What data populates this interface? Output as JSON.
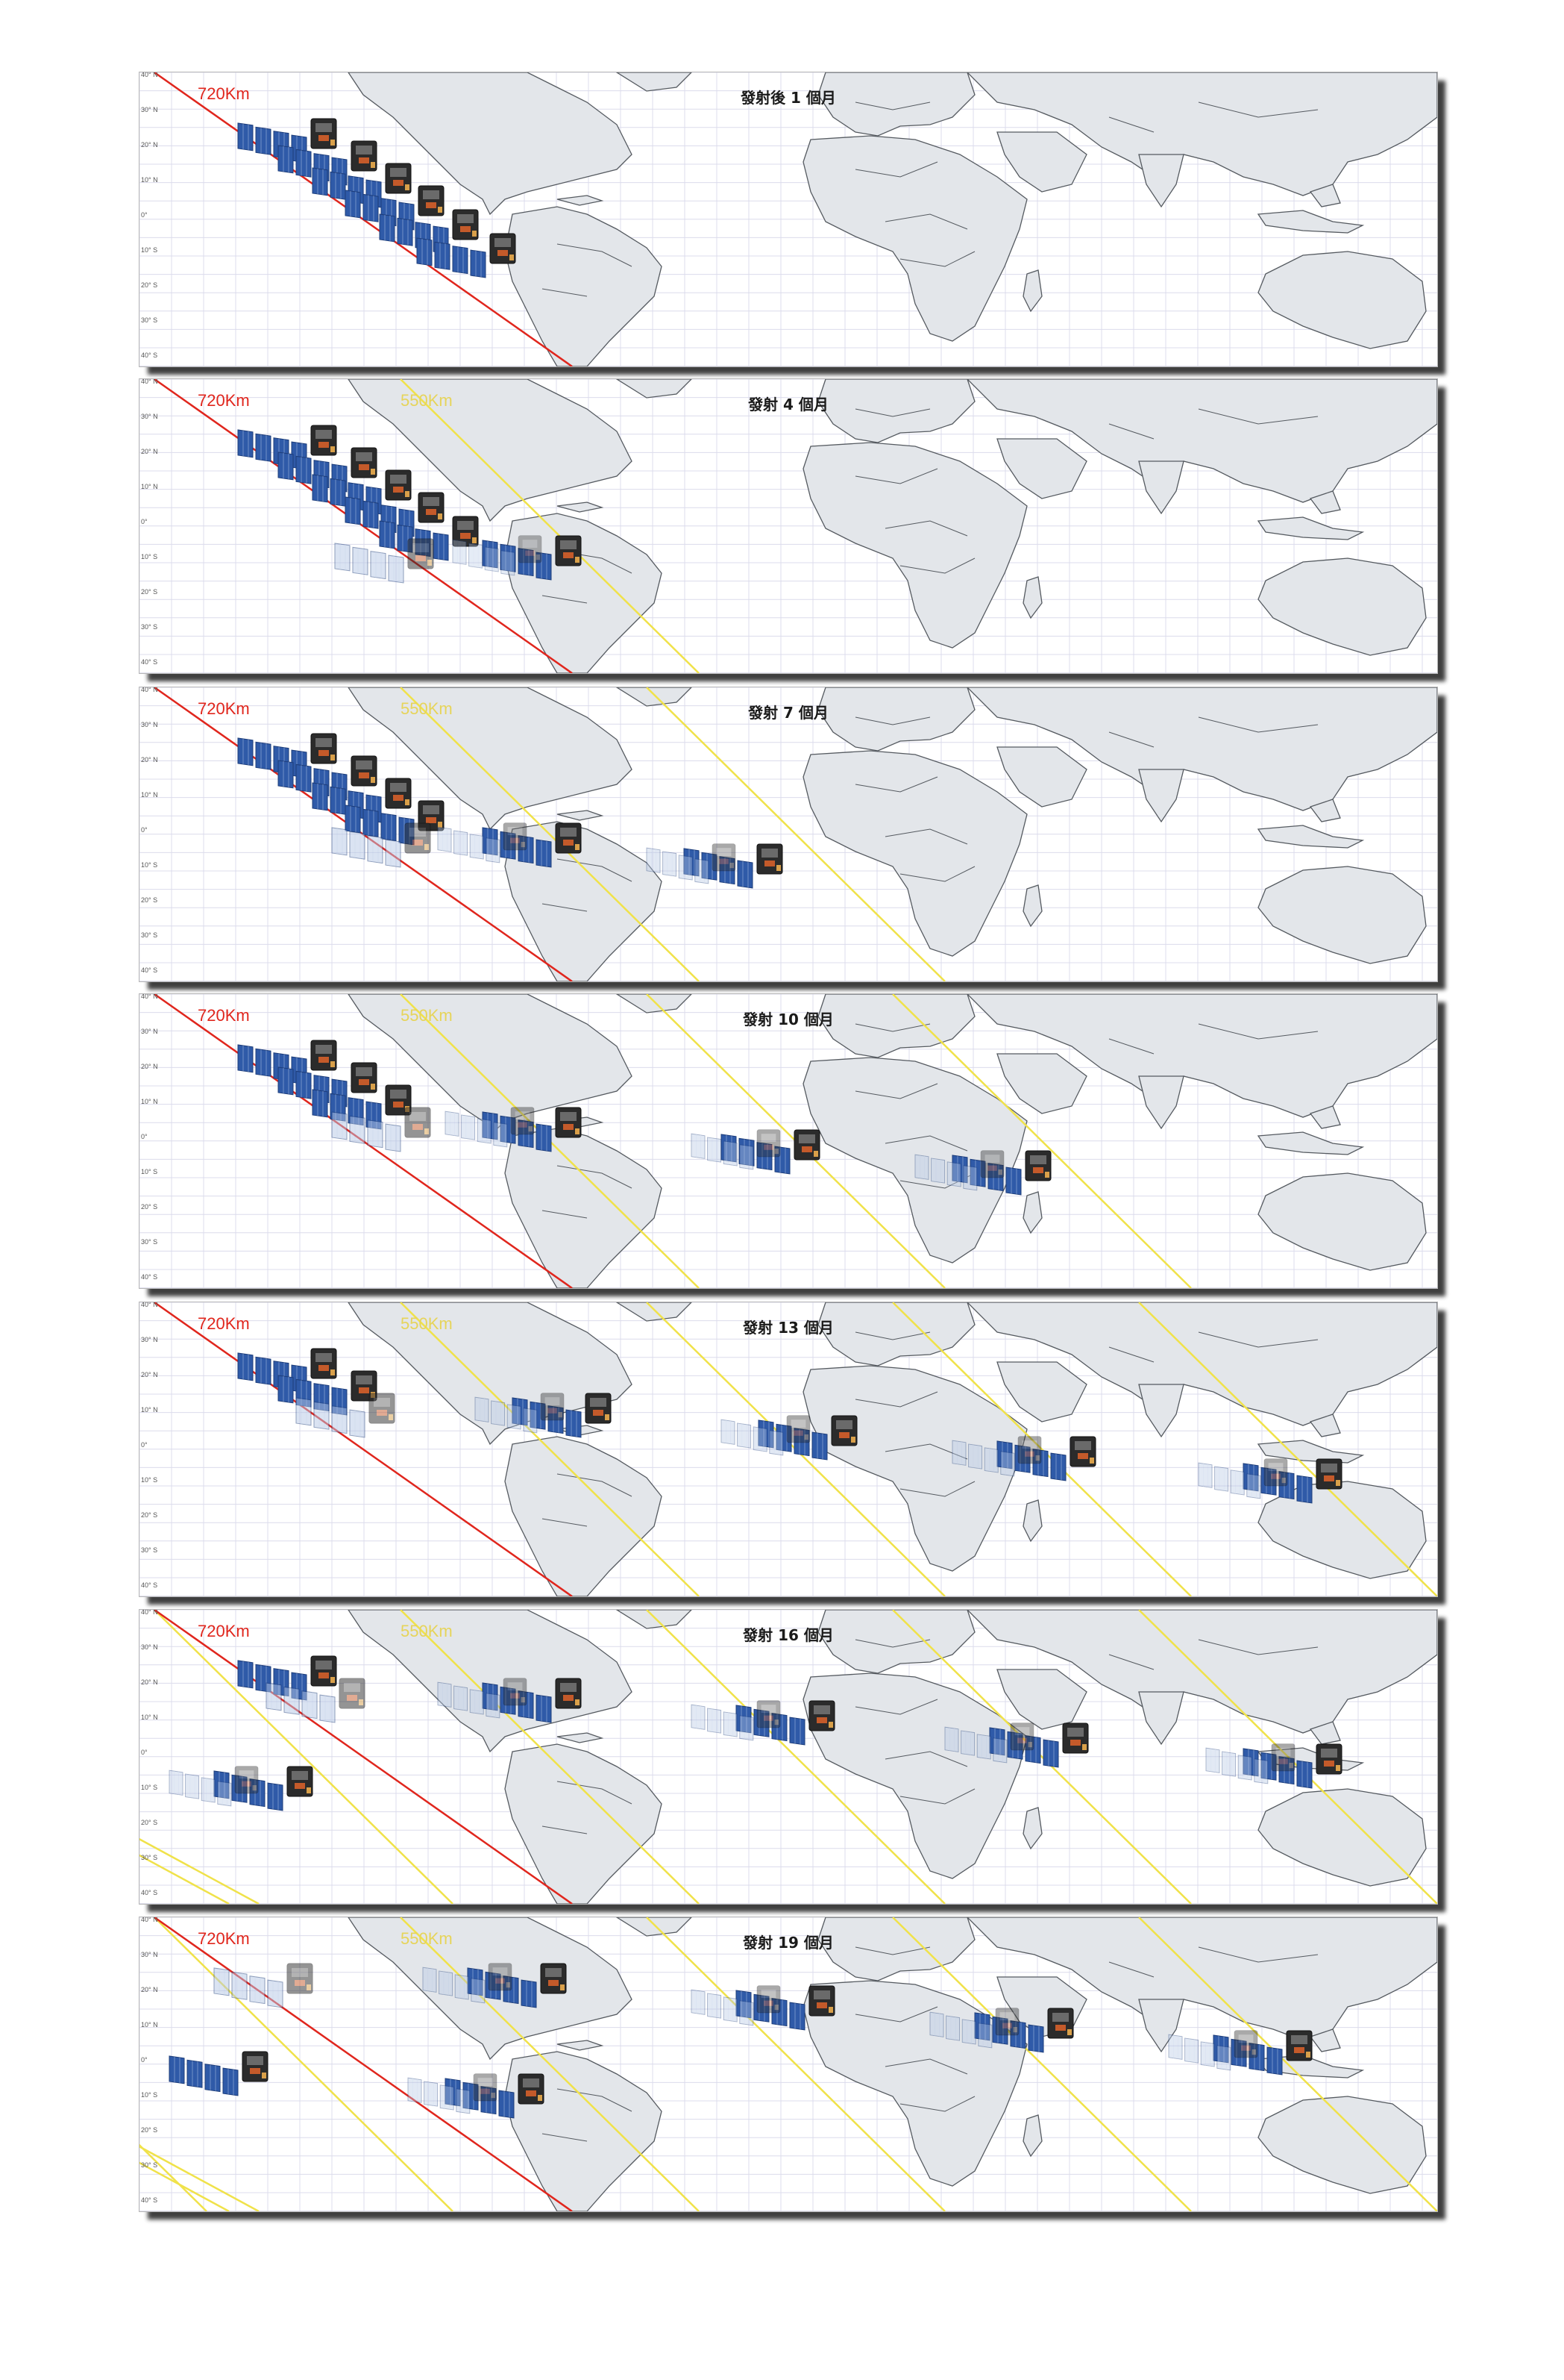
{
  "labels": {
    "orbit_720": "720Km",
    "orbit_550": "550Km"
  },
  "latitude_ticks": [
    "40° N",
    "30° N",
    "20° N",
    "10° N",
    "0°",
    "10° S",
    "20° S",
    "30° S",
    "40° S"
  ],
  "panels": [
    {
      "title": "發射後 1 個月",
      "show550": false
    },
    {
      "title": "發射 4 個月",
      "show550": true
    },
    {
      "title": "發射 7 個月",
      "show550": true
    },
    {
      "title": "發射 10 個月",
      "show550": true
    },
    {
      "title": "發射 13 個月",
      "show550": true
    },
    {
      "title": "發射 16 個月",
      "show550": true
    },
    {
      "title": "發射 19 個月",
      "show550": true
    }
  ],
  "colors": {
    "orbit_720": "#e0261d",
    "orbit_550": "#f0e24a",
    "land": "#e3e6ea",
    "border": "#555a60",
    "grid": "#dcdcec",
    "panel_blue": "#2f5aa8",
    "panel_blue_faded": "#b7c9e6",
    "satellite_body": "#2b2b2b"
  }
}
